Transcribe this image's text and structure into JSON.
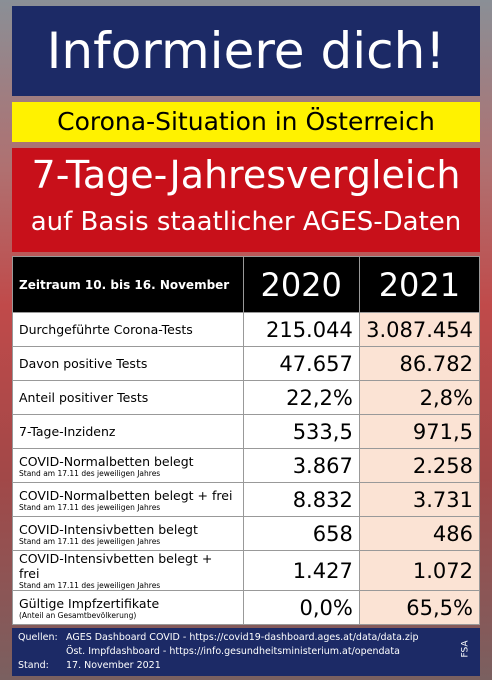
{
  "header": {
    "title": "Informiere dich!",
    "subtitle": "Corona-Situation in Österreich",
    "heading": "7-Tage-Jahresvergleich",
    "subheading": "auf Basis staatlicher AGES-Daten"
  },
  "table": {
    "columns": [
      "Zeitraum 10. bis 16. November",
      "2020",
      "2021"
    ],
    "rows": [
      {
        "label": "Durchgeführte Corona-Tests",
        "v2020": "215.044",
        "v2021": "3.087.454"
      },
      {
        "label": "Davon positive Tests",
        "v2020": "47.657",
        "v2021": "86.782"
      },
      {
        "label": "Anteil positiver Tests",
        "v2020": "22,2%",
        "v2021": "2,8%"
      },
      {
        "label": "7-Tage-Inzidenz",
        "v2020": "533,5",
        "v2021": "971,5"
      },
      {
        "label": "COVID-Normalbetten belegt",
        "note": "Stand am 17.11 des jeweiligen Jahres",
        "v2020": "3.867",
        "v2021": "2.258"
      },
      {
        "label": "COVID-Normalbetten belegt + frei",
        "note": "Stand am 17.11 des jeweiligen Jahres",
        "v2020": "8.832",
        "v2021": "3.731"
      },
      {
        "label": "COVID-Intensivbetten belegt",
        "note": "Stand am 17.11 des jeweiligen Jahres",
        "v2020": "658",
        "v2021": "486"
      },
      {
        "label": "COVID-Intensivbetten belegt + frei",
        "note": "Stand am 17.11 des jeweiligen Jahres",
        "v2020": "1.427",
        "v2021": "1.072"
      },
      {
        "label": "Gültige Impfzertifikate",
        "note": "(Anteil an Gesamtbevölkerung)",
        "v2020": "0,0%",
        "v2021": "65,5%"
      }
    ]
  },
  "footer": {
    "sources_label": "Quellen:",
    "sources": [
      "AGES Dashboard COVID - https://covid19-dashboard.ages.at/data/data.zip",
      "Öst. Impfdashboard - https://info.gesundheitsministerium.at/opendata"
    ],
    "date_label": "Stand:",
    "date": "17. November 2021",
    "credit": "FSA"
  }
}
